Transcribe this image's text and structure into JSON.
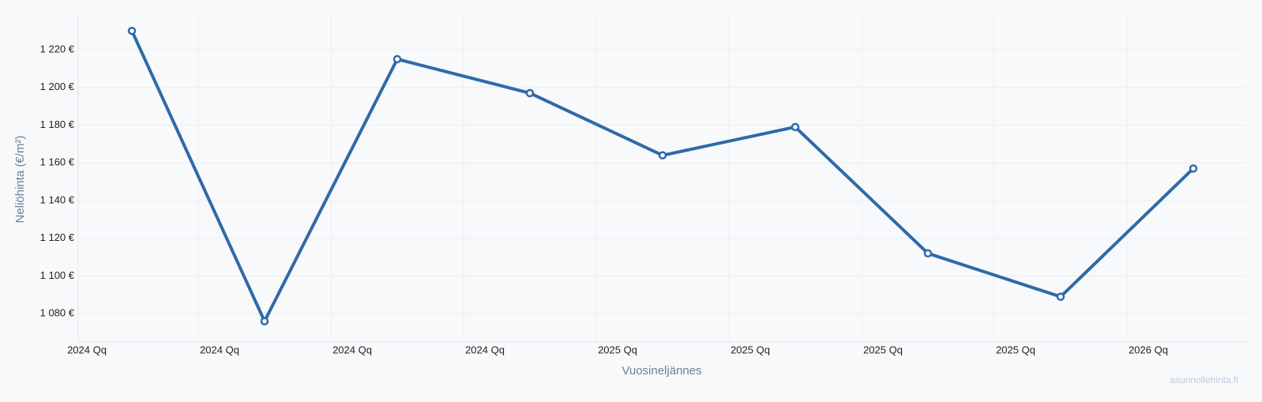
{
  "chart_data": {
    "type": "line",
    "x_label": "Vuosineljännes",
    "y_label": "Neliöhinta (€/m²)",
    "watermark": "asunnollehinta.fi",
    "categories": [
      "2024 Qq",
      "2024 Qq",
      "2024 Qq",
      "2024 Qq",
      "2025 Qq",
      "2025 Qq",
      "2025 Qq",
      "2025 Qq",
      "2026 Qq"
    ],
    "values": [
      1230,
      1076,
      1215,
      1197,
      1164,
      1179,
      1112,
      1089,
      1157
    ],
    "color": "#2f6aa8",
    "ylim": [
      1065,
      1238
    ],
    "yticks": [
      {
        "value": 1080,
        "label": "1 080 €"
      },
      {
        "value": 1100,
        "label": "1 100 €"
      },
      {
        "value": 1120,
        "label": "1 120 €"
      },
      {
        "value": 1140,
        "label": "1 140 €"
      },
      {
        "value": 1160,
        "label": "1 160 €"
      },
      {
        "value": 1180,
        "label": "1 180 €"
      },
      {
        "value": 1200,
        "label": "1 200 €"
      },
      {
        "value": 1220,
        "label": "1 220 €"
      }
    ],
    "grid": true
  }
}
